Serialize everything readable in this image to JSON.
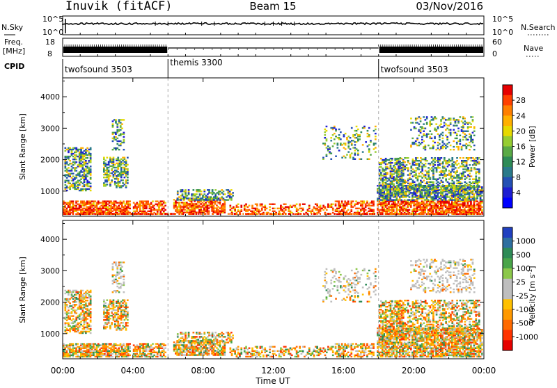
{
  "header": {
    "title": "Inuvik (fitACF)",
    "beam": "Beam 15",
    "date": "03/Nov/2016"
  },
  "summary_panels": {
    "nsky_label": "N.Sky",
    "nsky_ticks": [
      "10^5",
      "10^0"
    ],
    "nsearch_label": "N.Search",
    "nsearch_ticks": [
      "10^5",
      "10^0"
    ],
    "freq_label_1": "Freq.",
    "freq_label_2": "[MHz]",
    "freq_ticks": [
      "18",
      "8"
    ],
    "nave_label": "Nave",
    "nave_ticks": [
      "60",
      "0"
    ],
    "cpid_label": "CPID"
  },
  "cpid_segments": [
    {
      "name": "twofsound 3503",
      "start_hour": 0
    },
    {
      "name": "themis 3300",
      "start_hour": 6
    },
    {
      "name": "twofsound 3503",
      "start_hour": 18
    }
  ],
  "chart_data": [
    {
      "type": "heatmap",
      "panel": "power",
      "ylabel": "Slant Range [km]",
      "yticks": [
        1000,
        2000,
        3000,
        4000
      ],
      "ylim": [
        200,
        4600
      ],
      "xlim": [
        0,
        24
      ],
      "colorbar": {
        "label": "Power [dB]",
        "ticks": [
          "28",
          "24",
          "20",
          "16",
          "12",
          "8",
          "4"
        ],
        "colors": [
          "#e60000",
          "#ff4000",
          "#ff7f00",
          "#ffb000",
          "#e6d900",
          "#96cd32",
          "#5aaa46",
          "#2e8b57",
          "#2a7a8a",
          "#2450b4",
          "#1e1ed2",
          "#0000ff"
        ]
      }
    },
    {
      "type": "heatmap",
      "panel": "velocity",
      "ylabel": "Slant Range [km]",
      "yticks": [
        1000,
        2000,
        3000,
        4000
      ],
      "ylim": [
        200,
        4600
      ],
      "xlim": [
        0,
        24
      ],
      "xlabel": "Time UT",
      "xtick_labels": [
        "00:00",
        "04:00",
        "08:00",
        "12:00",
        "16:00",
        "20:00",
        "00:00"
      ],
      "colorbar": {
        "label": "Velocity [m s^-1]",
        "ticks": [
          "1000",
          "500",
          "100",
          "25",
          "-25",
          "-100",
          "-500",
          "-1000"
        ],
        "colors": [
          "#2040c0",
          "#2e6fa0",
          "#2e8b57",
          "#4aa54a",
          "#8cc84b",
          "#bebebe",
          "#bebebe",
          "#ffc000",
          "#ff9900",
          "#ff6a00",
          "#ff3300",
          "#e60000"
        ]
      }
    }
  ]
}
